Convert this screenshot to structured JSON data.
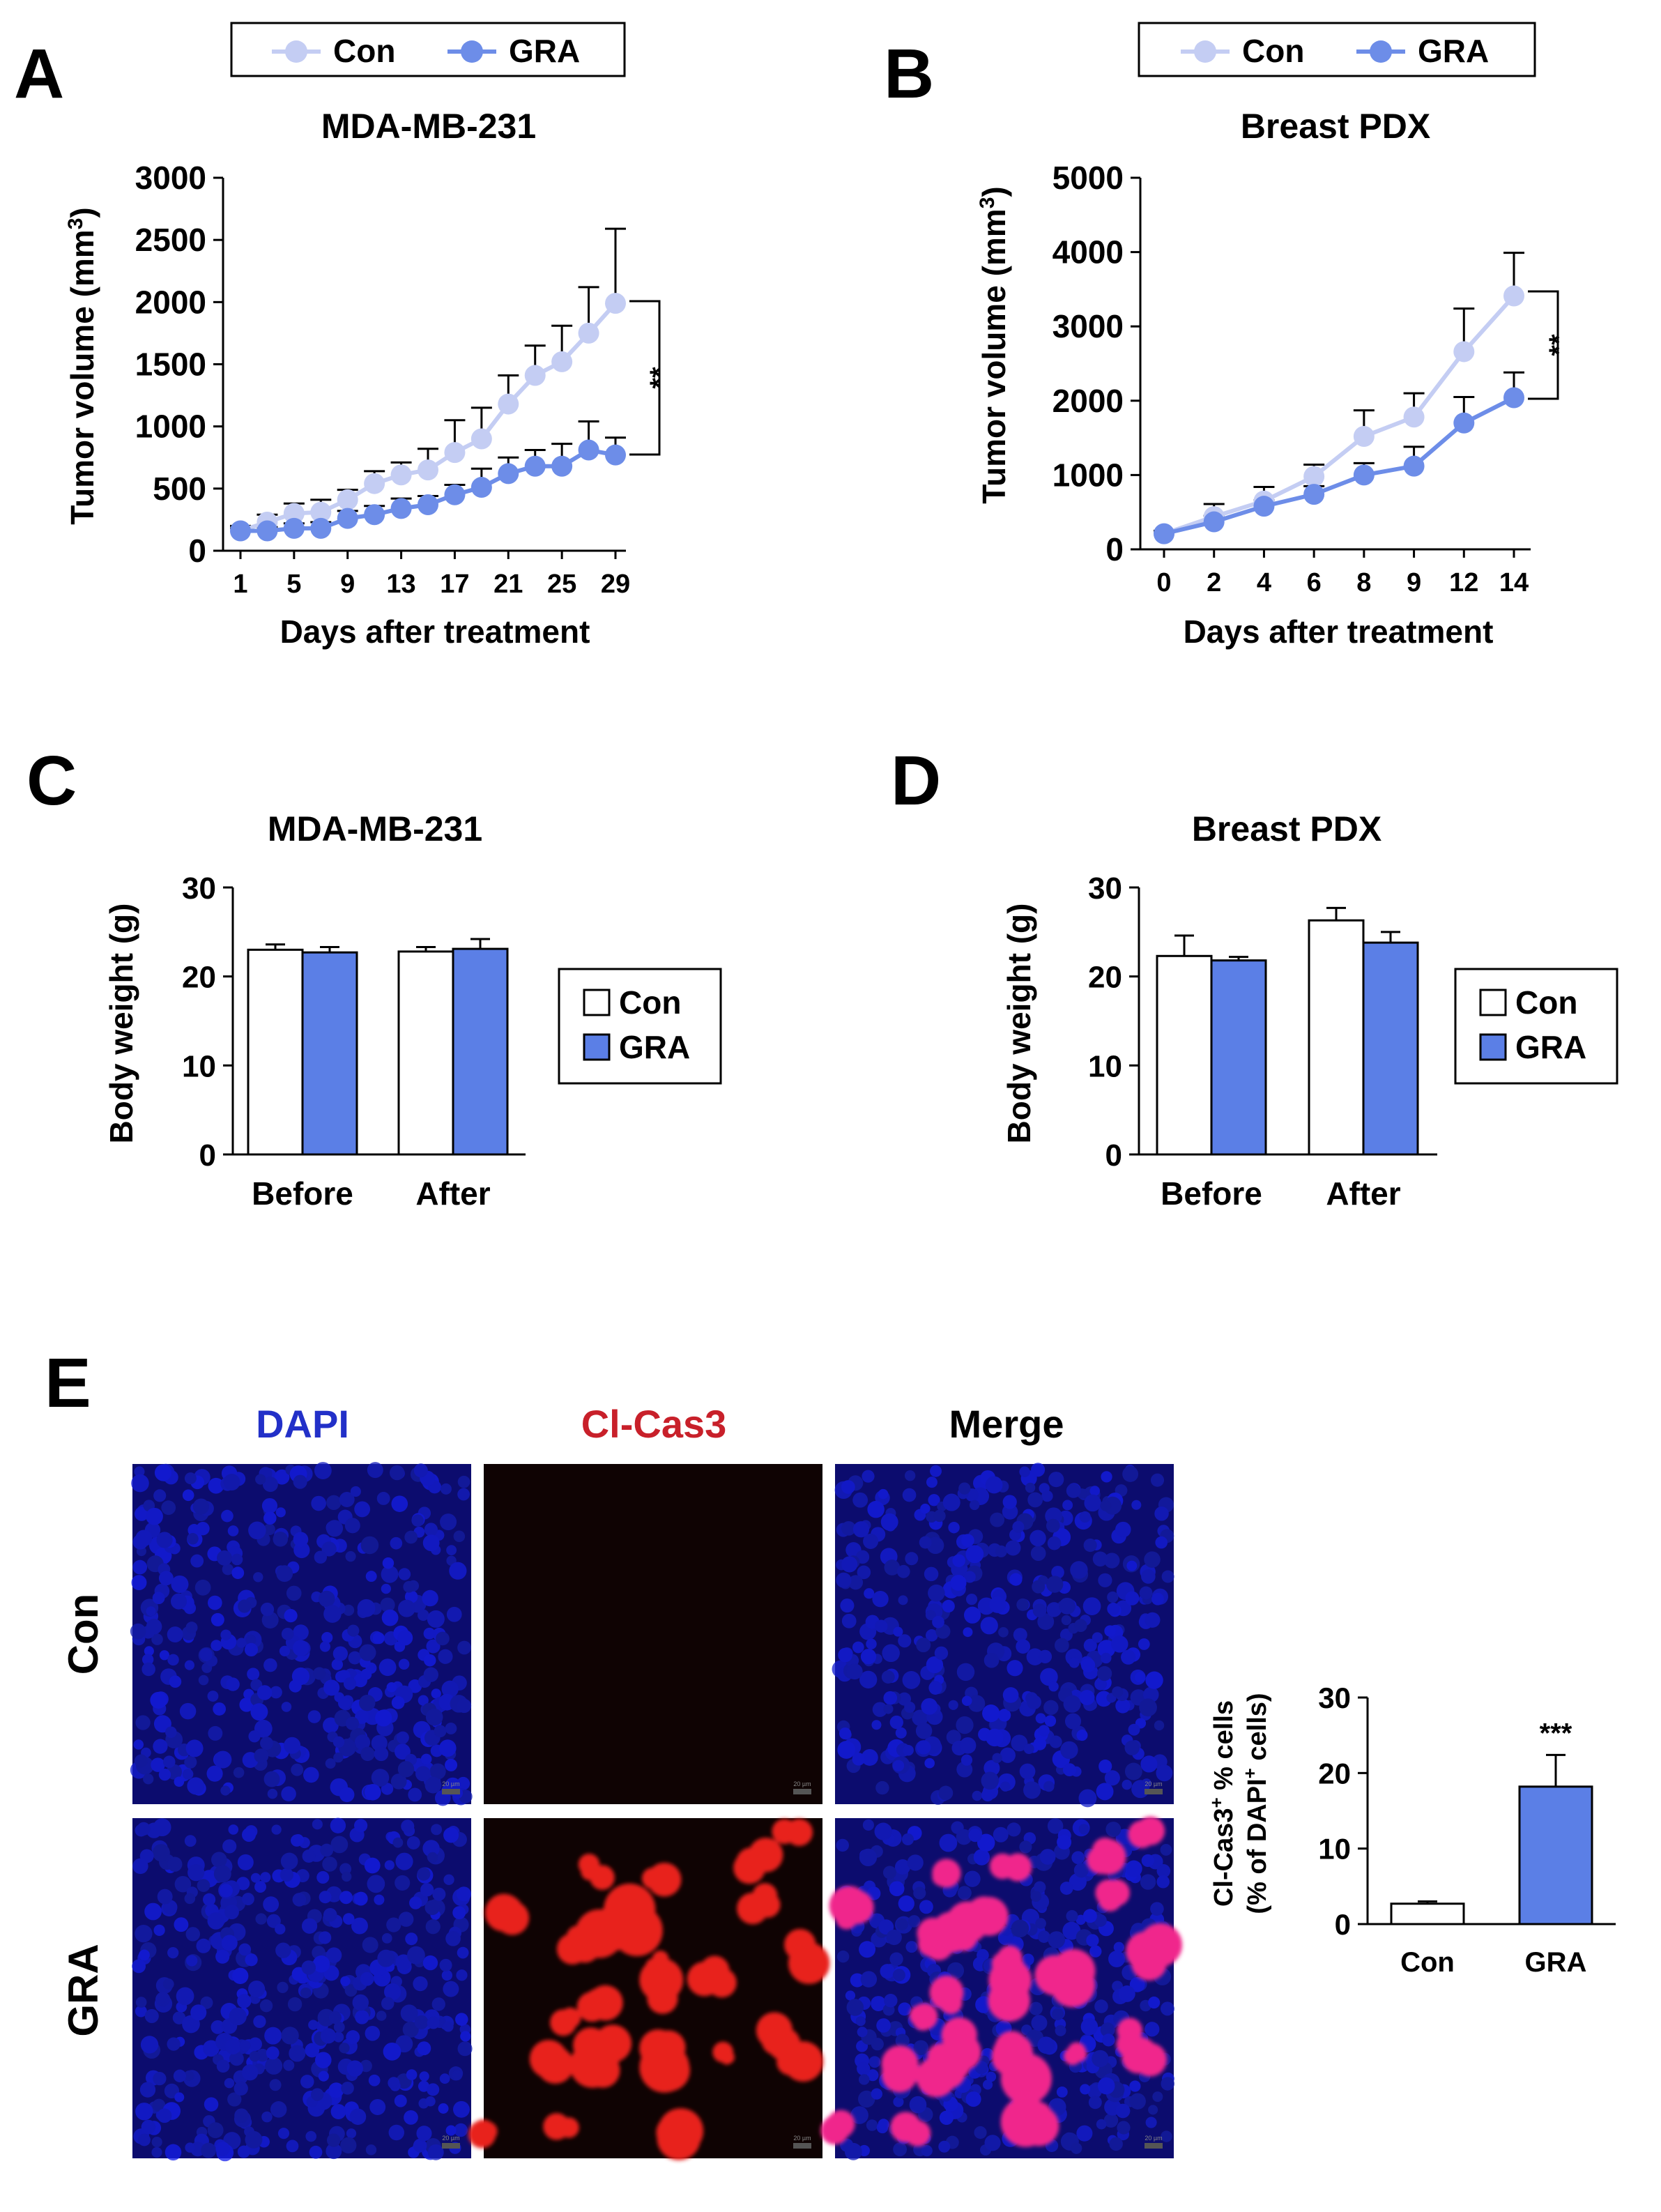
{
  "colors": {
    "con_line": "#c4cdf3",
    "gra_line": "#6d8de8",
    "gra_bar": "#5b7fe6",
    "axis": "#000000",
    "dapi_label": "#2230c8",
    "cas3_label": "#c8202a"
  },
  "panel_labels": [
    "A",
    "B",
    "C",
    "D",
    "E"
  ],
  "legend_markers": [
    "circle-marker-con",
    "circle-marker-gra",
    "swatch-con",
    "swatch-gra"
  ],
  "significance": {
    "A": "**",
    "B": "**",
    "E": "***"
  },
  "microscopy": {
    "columns": [
      "DAPI",
      "Cl-Cas3",
      "Merge"
    ],
    "rows": [
      "Con",
      "GRA"
    ],
    "scale_bar_label": "20 µm"
  },
  "chart_data": [
    {
      "id": "A",
      "type": "line",
      "title": "MDA-MB-231",
      "xlabel": "Days after treatment",
      "ylabel": "Tumor volume (mm³)",
      "ylabel_parts": [
        "Tumor volume (mm",
        "3",
        ")"
      ],
      "x": [
        1,
        3,
        5,
        7,
        9,
        11,
        13,
        15,
        17,
        19,
        21,
        23,
        25,
        27,
        29
      ],
      "x_ticks": [
        "1",
        "5",
        "9",
        "13",
        "17",
        "21",
        "25",
        "29"
      ],
      "x_tick_values": [
        1,
        5,
        9,
        13,
        17,
        21,
        25,
        29
      ],
      "y_ticks": [
        "0",
        "500",
        "1000",
        "1500",
        "2000",
        "2500",
        "3000"
      ],
      "y_tick_values": [
        0,
        500,
        1000,
        1500,
        2000,
        2500,
        3000
      ],
      "ylim": [
        0,
        3000
      ],
      "xlim": [
        0.5,
        29.5
      ],
      "legend": [
        "Con",
        "GRA"
      ],
      "series": [
        {
          "name": "Con",
          "values": [
            160,
            230,
            300,
            310,
            410,
            540,
            610,
            650,
            790,
            900,
            1180,
            1410,
            1520,
            1750,
            1990
          ],
          "errors": [
            40,
            60,
            80,
            100,
            80,
            100,
            100,
            170,
            260,
            250,
            230,
            240,
            290,
            370,
            600
          ]
        },
        {
          "name": "GRA",
          "values": [
            160,
            160,
            180,
            180,
            260,
            290,
            340,
            370,
            450,
            510,
            620,
            680,
            680,
            810,
            770
          ]
        }
      ],
      "gra_errors": [
        20,
        30,
        40,
        50,
        60,
        70,
        80,
        70,
        80,
        150,
        130,
        130,
        180,
        230,
        140
      ],
      "significance_between": [
        1990,
        770
      ]
    },
    {
      "id": "B",
      "type": "line",
      "title": "Breast PDX",
      "xlabel": "Days after treatment",
      "ylabel": "Tumor volume (mm³)",
      "ylabel_parts": [
        "Tumor volume (mm",
        "3",
        ")"
      ],
      "x": [
        0,
        2,
        4,
        6,
        8,
        9,
        12,
        14
      ],
      "x_ticks": [
        "0",
        "2",
        "4",
        "6",
        "8",
        "9",
        "12",
        "14"
      ],
      "y_ticks": [
        "0",
        "1000",
        "2000",
        "3000",
        "4000",
        "5000"
      ],
      "y_tick_values": [
        0,
        1000,
        2000,
        3000,
        4000,
        5000
      ],
      "ylim": [
        0,
        5000
      ],
      "legend": [
        "Con",
        "GRA"
      ],
      "series": [
        {
          "name": "Con",
          "values": [
            210,
            440,
            650,
            980,
            1520,
            1780,
            2660,
            3410
          ],
          "errors": [
            40,
            170,
            190,
            160,
            350,
            320,
            580,
            580
          ]
        },
        {
          "name": "GRA",
          "values": [
            210,
            370,
            580,
            740,
            1000,
            1120,
            1700,
            2040
          ]
        }
      ],
      "gra_errors": [
        30,
        80,
        80,
        110,
        160,
        260,
        350,
        340
      ],
      "significance_between": [
        3410,
        2040
      ]
    },
    {
      "id": "C",
      "type": "bar",
      "title": "MDA-MB-231",
      "ylabel": "Body weight (g)",
      "categories": [
        "Before",
        "After"
      ],
      "y_ticks": [
        "0",
        "10",
        "20",
        "30"
      ],
      "y_tick_values": [
        0,
        10,
        20,
        30
      ],
      "ylim": [
        0,
        30
      ],
      "legend": [
        "Con",
        "GRA"
      ],
      "series": [
        {
          "name": "Con",
          "values": [
            23.0,
            22.8
          ],
          "errors": [
            0.6,
            0.5
          ]
        },
        {
          "name": "GRA",
          "values": [
            22.7,
            23.1
          ],
          "errors": [
            0.6,
            1.1
          ]
        }
      ]
    },
    {
      "id": "D",
      "type": "bar",
      "title": "Breast PDX",
      "ylabel": "Body weight (g)",
      "categories": [
        "Before",
        "After"
      ],
      "y_ticks": [
        "0",
        "10",
        "20",
        "30"
      ],
      "y_tick_values": [
        0,
        10,
        20,
        30
      ],
      "ylim": [
        0,
        30
      ],
      "legend": [
        "Con",
        "GRA"
      ],
      "series": [
        {
          "name": "Con",
          "values": [
            22.3,
            26.3
          ],
          "errors": [
            2.3,
            1.4
          ]
        },
        {
          "name": "GRA",
          "values": [
            21.8,
            23.8
          ],
          "errors": [
            0.4,
            1.2
          ]
        }
      ]
    },
    {
      "id": "E",
      "type": "bar",
      "title": "",
      "ylabel": "Cl-Cas3⁺ % cells (% of DAPI⁺ cells)",
      "ylabel_line1": [
        "Cl-Cas3",
        "+",
        " % cells"
      ],
      "ylabel_line2": [
        "(% of DAPI",
        "+",
        " cells)"
      ],
      "categories": [
        "Con",
        "GRA"
      ],
      "y_ticks": [
        "0",
        "10",
        "20",
        "30"
      ],
      "y_tick_values": [
        0,
        10,
        20,
        30
      ],
      "ylim": [
        0,
        30
      ],
      "values": [
        2.7,
        18.2
      ],
      "errors": [
        0.3,
        4.2
      ]
    }
  ]
}
